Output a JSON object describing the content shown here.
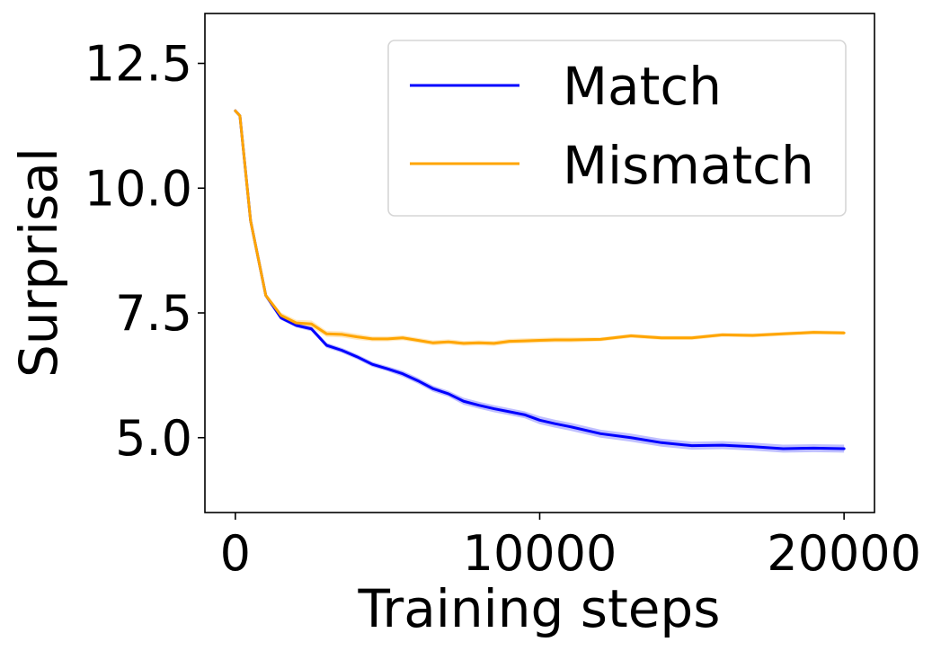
{
  "chart_data": {
    "type": "line",
    "title": "",
    "xlabel": "Training steps",
    "ylabel": "Surprisal",
    "xlim": [
      -1000,
      21000
    ],
    "ylim": [
      3.5,
      13.5
    ],
    "xticks": [
      0,
      10000,
      20000
    ],
    "xtick_labels": [
      "0",
      "10000",
      "20000"
    ],
    "yticks": [
      5.0,
      7.5,
      10.0,
      12.5
    ],
    "ytick_labels": [
      "5.0",
      "7.5",
      "10.0",
      "12.5"
    ],
    "grid": false,
    "legend_position": "upper-right",
    "series": [
      {
        "name": "Match",
        "color": "#0000ff",
        "band_opacity": 0.25,
        "x": [
          0,
          150,
          500,
          1000,
          1500,
          2000,
          2500,
          3000,
          3500,
          4000,
          4500,
          5000,
          5500,
          6000,
          6500,
          7000,
          7500,
          8000,
          8500,
          9000,
          9500,
          10000,
          10500,
          11000,
          12000,
          13000,
          14000,
          15000,
          16000,
          17000,
          18000,
          19000,
          20000
        ],
        "values": [
          11.55,
          11.45,
          9.35,
          7.85,
          7.4,
          7.25,
          7.18,
          6.85,
          6.75,
          6.62,
          6.47,
          6.38,
          6.28,
          6.14,
          5.98,
          5.88,
          5.73,
          5.65,
          5.58,
          5.52,
          5.46,
          5.35,
          5.28,
          5.22,
          5.08,
          5.0,
          4.9,
          4.84,
          4.85,
          4.82,
          4.78,
          4.79,
          4.78
        ],
        "band": [
          0.04,
          0.04,
          0.04,
          0.04,
          0.04,
          0.04,
          0.05,
          0.05,
          0.05,
          0.05,
          0.05,
          0.05,
          0.06,
          0.06,
          0.06,
          0.06,
          0.07,
          0.07,
          0.07,
          0.07,
          0.07,
          0.08,
          0.08,
          0.08,
          0.08,
          0.08,
          0.08,
          0.08,
          0.08,
          0.08,
          0.08,
          0.08,
          0.08
        ]
      },
      {
        "name": "Mismatch",
        "color": "#ffa500",
        "band_opacity": 0.25,
        "x": [
          0,
          150,
          500,
          1000,
          1500,
          2000,
          2500,
          3000,
          3500,
          4000,
          4500,
          5000,
          5500,
          6000,
          6500,
          7000,
          7500,
          8000,
          8500,
          9000,
          9500,
          10000,
          10500,
          11000,
          12000,
          13000,
          14000,
          15000,
          16000,
          17000,
          18000,
          19000,
          20000
        ],
        "values": [
          11.55,
          11.45,
          9.35,
          7.85,
          7.45,
          7.3,
          7.28,
          7.08,
          7.07,
          7.02,
          6.98,
          6.98,
          7.0,
          6.95,
          6.9,
          6.92,
          6.89,
          6.9,
          6.89,
          6.93,
          6.94,
          6.95,
          6.96,
          6.96,
          6.97,
          7.04,
          7.0,
          7.0,
          7.06,
          7.05,
          7.08,
          7.11,
          7.1
        ],
        "band": [
          0.04,
          0.04,
          0.04,
          0.05,
          0.06,
          0.06,
          0.07,
          0.06,
          0.06,
          0.06,
          0.05,
          0.05,
          0.05,
          0.05,
          0.05,
          0.05,
          0.05,
          0.05,
          0.05,
          0.05,
          0.05,
          0.05,
          0.05,
          0.05,
          0.04,
          0.04,
          0.04,
          0.04,
          0.04,
          0.04,
          0.04,
          0.04,
          0.04
        ]
      }
    ]
  }
}
